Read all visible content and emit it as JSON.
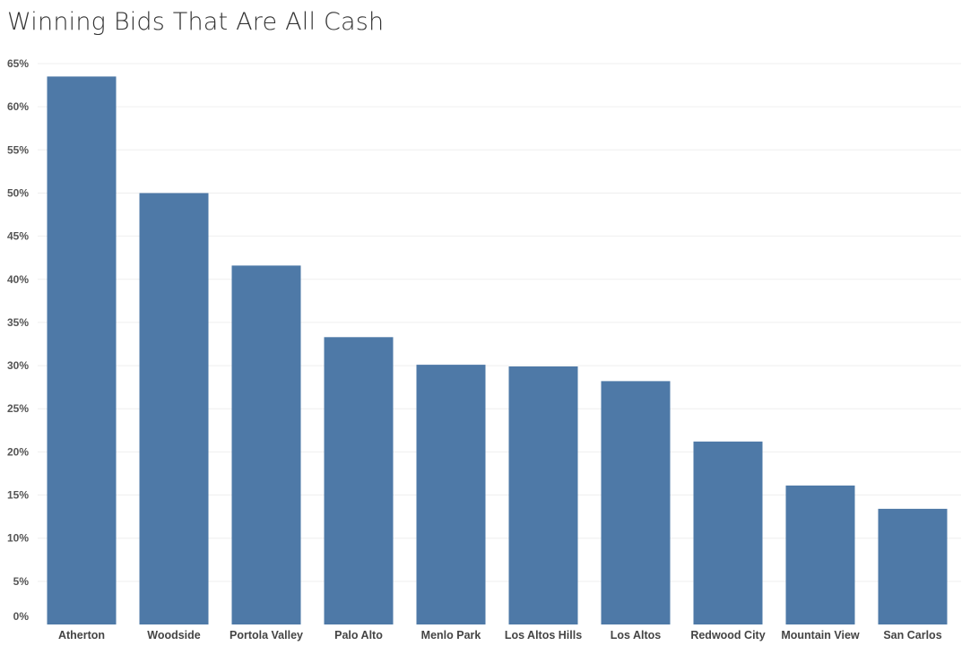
{
  "chart_data": {
    "type": "bar",
    "title": "Winning Bids That Are All Cash",
    "xlabel": "",
    "ylabel": "",
    "categories": [
      "Atherton",
      "Woodside",
      "Portola Valley",
      "Palo Alto",
      "Menlo Park",
      "Los Altos Hills",
      "Los Altos",
      "Redwood City",
      "Mountain View",
      "San Carlos"
    ],
    "values": [
      63.5,
      50.0,
      41.6,
      33.3,
      30.1,
      29.9,
      28.2,
      21.2,
      16.1,
      13.4
    ],
    "ylim": [
      0,
      65
    ],
    "yticks": [
      0,
      5,
      10,
      15,
      20,
      25,
      30,
      35,
      40,
      45,
      50,
      55,
      60,
      65
    ],
    "ytick_labels": [
      "0%",
      "5%",
      "10%",
      "15%",
      "20%",
      "25%",
      "30%",
      "35%",
      "40%",
      "45%",
      "50%",
      "55%",
      "60%",
      "65%"
    ],
    "grid": true,
    "legend": "none",
    "bar_color": "#4e79a7",
    "grid_color": "#efefef"
  }
}
